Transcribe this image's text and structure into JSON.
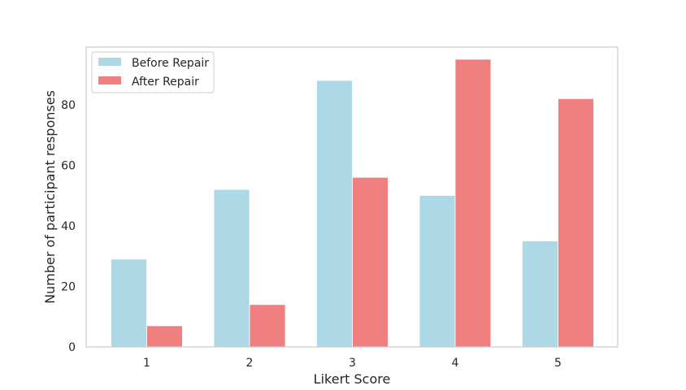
{
  "chart_data": {
    "type": "bar",
    "title": "",
    "xlabel": "Likert Score",
    "ylabel": "Number of participant responses",
    "categories": [
      "1",
      "2",
      "3",
      "4",
      "5"
    ],
    "series": [
      {
        "name": "Before Repair",
        "values": [
          29,
          52,
          88,
          50,
          35
        ],
        "color": "#add8e6"
      },
      {
        "name": "After Repair",
        "values": [
          7,
          14,
          56,
          95,
          82
        ],
        "color": "#f08080"
      }
    ],
    "ylim": [
      0,
      99
    ],
    "yticks": [
      0,
      20,
      40,
      60,
      80
    ],
    "grid": false,
    "legend_position": "top-left",
    "frame_color": "#cccccc"
  }
}
